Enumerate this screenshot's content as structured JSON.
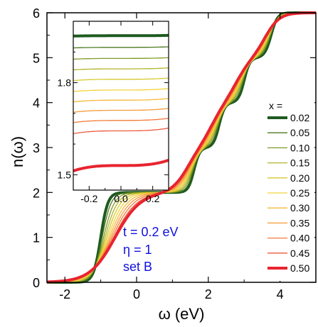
{
  "chart_data": {
    "type": "line",
    "xlabel": "ω (eV)",
    "ylabel": "n(ω)",
    "xlim": [
      -2.5,
      5
    ],
    "ylim": [
      0,
      6
    ],
    "x_ticks": [
      -2,
      0,
      2,
      4
    ],
    "y_ticks": [
      0,
      1,
      2,
      3,
      4,
      5,
      6
    ],
    "x_tick_labels": [
      "-2",
      "0",
      "2",
      "4"
    ],
    "y_tick_labels": [
      "0",
      "1",
      "2",
      "3",
      "4",
      "5",
      "6"
    ],
    "annotations": [
      "t = 0.2 eV",
      "η = 1",
      "set B"
    ],
    "annotation_color": "#1010e0",
    "legend_title": "x =",
    "legend_position": "right",
    "series": [
      {
        "name": "0.02",
        "color": "#1f5a1f",
        "thick": true
      },
      {
        "name": "0.05",
        "color": "#4e7a22",
        "thick": false
      },
      {
        "name": "0.10",
        "color": "#7f9a26",
        "thick": false
      },
      {
        "name": "0.15",
        "color": "#b0b42a",
        "thick": false
      },
      {
        "name": "0.20",
        "color": "#d8c832",
        "thick": false
      },
      {
        "name": "0.25",
        "color": "#f2d23a",
        "thick": false
      },
      {
        "name": "0.30",
        "color": "#f6b83a",
        "thick": false
      },
      {
        "name": "0.35",
        "color": "#f59a3a",
        "thick": false
      },
      {
        "name": "0.40",
        "color": "#f27a3a",
        "thick": false
      },
      {
        "name": "0.45",
        "color": "#ee5a3e",
        "thick": false
      },
      {
        "name": "0.50",
        "color": "#e8242f",
        "thick": true
      }
    ],
    "inset": {
      "xlim": [
        -0.3,
        0.3
      ],
      "ylim": [
        1.45,
        2.0
      ],
      "x_ticks": [
        -0.2,
        0,
        0.2
      ],
      "x_tick_labels": [
        "-0.2",
        "0.0",
        "0.2"
      ],
      "y_ticks": [
        1.5,
        1.8
      ],
      "y_tick_labels": [
        "1.5",
        "1.8"
      ],
      "levels": [
        1.953,
        1.915,
        1.879,
        1.845,
        1.811,
        1.776,
        1.743,
        1.71,
        1.677,
        1.643,
        1.53
      ],
      "slopes": [
        0.015,
        0.025,
        0.035,
        0.045,
        0.06,
        0.07,
        0.08,
        0.09,
        0.1,
        0.13,
        0.25
      ]
    }
  }
}
